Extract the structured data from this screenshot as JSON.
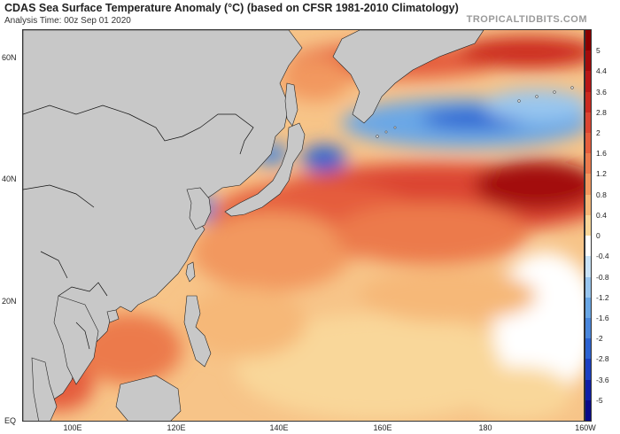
{
  "header": {
    "title": "CDAS Sea Surface Temperature Anomaly (°C) (based on CFSR 1981-2010 Climatology)",
    "analysis_time": "Analysis Time: 00z Sep 01 2020",
    "credit": "TROPICALTIDBITS.COM"
  },
  "map": {
    "lat_labels": [
      "60N",
      "40N",
      "20N",
      "EQ"
    ],
    "lon_labels": [
      "100E",
      "120E",
      "140E",
      "160E",
      "180",
      "160W"
    ],
    "land_color": "#c8c8c8",
    "border_color": "#111111"
  },
  "colorbar": {
    "labels": [
      "5",
      "4.4",
      "3.6",
      "2.8",
      "2",
      "1.6",
      "1.2",
      "0.8",
      "0.4",
      "0",
      "-0.4",
      "-0.8",
      "-1.2",
      "-1.6",
      "-2",
      "-2.8",
      "-3.6",
      "-5"
    ],
    "colors": [
      "#8b0000",
      "#a30b0b",
      "#b81717",
      "#cc2a1f",
      "#dc4531",
      "#e55d3c",
      "#ec7a4c",
      "#f2985f",
      "#f6b878",
      "#f9d79a",
      "#ffffff",
      "#c9e3f8",
      "#98c6ef",
      "#6aa7e6",
      "#4a87dd",
      "#2c63d2",
      "#1a40c3",
      "#0f1fa8",
      "#0a0a8a"
    ]
  }
}
